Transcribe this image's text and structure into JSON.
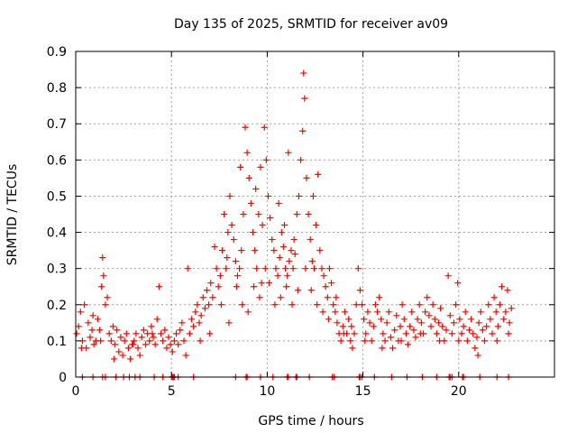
{
  "chart_data": {
    "type": "scatter",
    "title": "Day 135 of 2025, SRMTID for receiver av09",
    "xlabel": "GPS time / hours",
    "ylabel": "SRMTID / TECUs",
    "xlim": [
      0,
      25
    ],
    "ylim": [
      0,
      0.9
    ],
    "xticks": [
      0,
      5,
      10,
      15,
      20
    ],
    "yticks": [
      0,
      0.1,
      0.2,
      0.3,
      0.4,
      0.5,
      0.6,
      0.7,
      0.8,
      0.9
    ],
    "ytick_labels": [
      "0",
      "0.1",
      "0.2",
      "0.3",
      "0.4",
      "0.5",
      "0.6",
      "0.7",
      "0.8",
      "0.9"
    ],
    "grid": true,
    "marker": "+",
    "color": "#ff0000",
    "series": [
      {
        "name": "SRMTID",
        "points": [
          [
            0.05,
            0.12
          ],
          [
            0.15,
            0.14
          ],
          [
            0.25,
            0.18
          ],
          [
            0.35,
            0.1
          ],
          [
            0.45,
            0.2
          ],
          [
            0.55,
            0.08
          ],
          [
            0.65,
            0.15
          ],
          [
            0.75,
            0.11
          ],
          [
            0.85,
            0.13
          ],
          [
            0.95,
            0.09
          ],
          [
            1.05,
            0.1
          ],
          [
            1.15,
            0.16
          ],
          [
            1.25,
            0.13
          ],
          [
            1.35,
            0.25
          ],
          [
            1.4,
            0.33
          ],
          [
            1.45,
            0.28
          ],
          [
            1.55,
            0.2
          ],
          [
            1.65,
            0.22
          ],
          [
            1.75,
            0.12
          ],
          [
            1.85,
            0.1
          ],
          [
            1.95,
            0.14
          ],
          [
            2.05,
            0.09
          ],
          [
            2.15,
            0.13
          ],
          [
            2.25,
            0.07
          ],
          [
            2.35,
            0.11
          ],
          [
            2.45,
            0.06
          ],
          [
            2.55,
            0.1
          ],
          [
            2.65,
            0.12
          ],
          [
            2.75,
            0.08
          ],
          [
            2.85,
            0.05
          ],
          [
            2.95,
            0.09
          ],
          [
            3.05,
            0.1
          ],
          [
            3.15,
            0.12
          ],
          [
            3.25,
            0.08
          ],
          [
            3.35,
            0.06
          ],
          [
            3.45,
            0.11
          ],
          [
            3.55,
            0.13
          ],
          [
            3.65,
            0.09
          ],
          [
            3.75,
            0.12
          ],
          [
            3.85,
            0.1
          ],
          [
            3.95,
            0.14
          ],
          [
            4.05,
            0.11
          ],
          [
            4.15,
            0.09
          ],
          [
            4.25,
            0.16
          ],
          [
            4.35,
            0.25
          ],
          [
            4.45,
            0.12
          ],
          [
            4.55,
            0.1
          ],
          [
            4.65,
            0.13
          ],
          [
            4.75,
            0.08
          ],
          [
            4.85,
            0.11
          ],
          [
            4.95,
            0.09
          ],
          [
            5.05,
            0.07
          ],
          [
            5.15,
            0.1
          ],
          [
            5.25,
            0.12
          ],
          [
            5.35,
            0.09
          ],
          [
            5.45,
            0.13
          ],
          [
            5.55,
            0.15
          ],
          [
            5.65,
            0.1
          ],
          [
            5.75,
            0.06
          ],
          [
            5.85,
            0.3
          ],
          [
            5.95,
            0.12
          ],
          [
            6.05,
            0.16
          ],
          [
            6.15,
            0.14
          ],
          [
            6.25,
            0.18
          ],
          [
            6.35,
            0.2
          ],
          [
            6.45,
            0.15
          ],
          [
            6.55,
            0.17
          ],
          [
            6.65,
            0.22
          ],
          [
            6.75,
            0.19
          ],
          [
            6.85,
            0.24
          ],
          [
            6.95,
            0.2
          ],
          [
            7.05,
            0.26
          ],
          [
            7.15,
            0.22
          ],
          [
            7.25,
            0.36
          ],
          [
            7.35,
            0.3
          ],
          [
            7.45,
            0.25
          ],
          [
            7.55,
            0.28
          ],
          [
            7.65,
            0.35
          ],
          [
            7.75,
            0.45
          ],
          [
            7.85,
            0.3
          ],
          [
            7.95,
            0.4
          ],
          [
            8.05,
            0.5
          ],
          [
            8.15,
            0.42
          ],
          [
            8.25,
            0.38
          ],
          [
            8.35,
            0.32
          ],
          [
            8.45,
            0.28
          ],
          [
            8.55,
            0.3
          ],
          [
            8.65,
            0.35
          ],
          [
            8.75,
            0.45
          ],
          [
            8.85,
            0.69
          ],
          [
            8.95,
            0.62
          ],
          [
            9.05,
            0.55
          ],
          [
            9.15,
            0.48
          ],
          [
            9.25,
            0.4
          ],
          [
            9.35,
            0.35
          ],
          [
            9.45,
            0.3
          ],
          [
            9.55,
            0.45
          ],
          [
            9.65,
            0.58
          ],
          [
            9.75,
            0.42
          ],
          [
            9.85,
            0.69
          ],
          [
            9.95,
            0.6
          ],
          [
            10.05,
            0.5
          ],
          [
            10.15,
            0.44
          ],
          [
            10.25,
            0.38
          ],
          [
            10.35,
            0.35
          ],
          [
            10.45,
            0.3
          ],
          [
            10.55,
            0.28
          ],
          [
            10.65,
            0.33
          ],
          [
            10.75,
            0.4
          ],
          [
            10.85,
            0.36
          ],
          [
            10.95,
            0.3
          ],
          [
            11.05,
            0.28
          ],
          [
            11.15,
            0.32
          ],
          [
            11.25,
            0.35
          ],
          [
            11.35,
            0.3
          ],
          [
            11.45,
            0.34
          ],
          [
            11.55,
            0.45
          ],
          [
            11.65,
            0.5
          ],
          [
            11.75,
            0.6
          ],
          [
            11.85,
            0.68
          ],
          [
            11.9,
            0.84
          ],
          [
            11.95,
            0.77
          ],
          [
            12.05,
            0.55
          ],
          [
            12.15,
            0.45
          ],
          [
            12.25,
            0.38
          ],
          [
            12.35,
            0.32
          ],
          [
            12.45,
            0.3
          ],
          [
            12.55,
            0.42
          ],
          [
            12.65,
            0.56
          ],
          [
            12.75,
            0.35
          ],
          [
            12.85,
            0.3
          ],
          [
            12.95,
            0.28
          ],
          [
            13.05,
            0.25
          ],
          [
            13.15,
            0.22
          ],
          [
            13.25,
            0.3
          ],
          [
            13.35,
            0.26
          ],
          [
            13.45,
            0.2
          ],
          [
            13.55,
            0.18
          ],
          [
            13.65,
            0.15
          ],
          [
            13.75,
            0.12
          ],
          [
            13.85,
            0.1
          ],
          [
            13.95,
            0.14
          ],
          [
            14.05,
            0.18
          ],
          [
            14.15,
            0.12
          ],
          [
            14.25,
            0.16
          ],
          [
            14.35,
            0.1
          ],
          [
            14.45,
            0.08
          ],
          [
            14.55,
            0.12
          ],
          [
            14.65,
            0.2
          ],
          [
            14.75,
            0.3
          ],
          [
            14.85,
            0.24
          ],
          [
            14.95,
            0.2
          ],
          [
            15.05,
            0.16
          ],
          [
            15.15,
            0.12
          ],
          [
            15.25,
            0.18
          ],
          [
            15.35,
            0.15
          ],
          [
            15.45,
            0.1
          ],
          [
            15.55,
            0.14
          ],
          [
            15.65,
            0.2
          ],
          [
            15.75,
            0.18
          ],
          [
            15.85,
            0.22
          ],
          [
            15.95,
            0.16
          ],
          [
            16.05,
            0.12
          ],
          [
            16.15,
            0.1
          ],
          [
            16.25,
            0.15
          ],
          [
            16.35,
            0.18
          ],
          [
            16.45,
            0.11
          ],
          [
            16.55,
            0.08
          ],
          [
            16.65,
            0.13
          ],
          [
            16.75,
            0.17
          ],
          [
            16.85,
            0.1
          ],
          [
            16.95,
            0.14
          ],
          [
            17.05,
            0.2
          ],
          [
            17.15,
            0.16
          ],
          [
            17.25,
            0.12
          ],
          [
            17.35,
            0.09
          ],
          [
            17.45,
            0.14
          ],
          [
            17.55,
            0.18
          ],
          [
            17.65,
            0.13
          ],
          [
            17.75,
            0.11
          ],
          [
            17.85,
            0.16
          ],
          [
            17.95,
            0.2
          ],
          [
            18.05,
            0.15
          ],
          [
            18.15,
            0.12
          ],
          [
            18.25,
            0.18
          ],
          [
            18.35,
            0.22
          ],
          [
            18.45,
            0.17
          ],
          [
            18.55,
            0.14
          ],
          [
            18.65,
            0.2
          ],
          [
            18.75,
            0.16
          ],
          [
            18.85,
            0.12
          ],
          [
            18.95,
            0.15
          ],
          [
            19.05,
            0.19
          ],
          [
            19.15,
            0.14
          ],
          [
            19.25,
            0.1
          ],
          [
            19.35,
            0.13
          ],
          [
            19.45,
            0.28
          ],
          [
            19.55,
            0.17
          ],
          [
            19.65,
            0.12
          ],
          [
            19.75,
            0.15
          ],
          [
            19.85,
            0.2
          ],
          [
            19.95,
            0.26
          ],
          [
            20.05,
            0.16
          ],
          [
            20.15,
            0.12
          ],
          [
            20.25,
            0.14
          ],
          [
            20.35,
            0.18
          ],
          [
            20.45,
            0.1
          ],
          [
            20.55,
            0.13
          ],
          [
            20.65,
            0.16
          ],
          [
            20.75,
            0.12
          ],
          [
            20.85,
            0.08
          ],
          [
            20.95,
            0.11
          ],
          [
            21.05,
            0.15
          ],
          [
            21.15,
            0.18
          ],
          [
            21.25,
            0.13
          ],
          [
            21.35,
            0.1
          ],
          [
            21.45,
            0.14
          ],
          [
            21.55,
            0.2
          ],
          [
            21.65,
            0.16
          ],
          [
            21.75,
            0.12
          ],
          [
            21.85,
            0.22
          ],
          [
            21.95,
            0.18
          ],
          [
            22.05,
            0.14
          ],
          [
            22.15,
            0.2
          ],
          [
            22.25,
            0.25
          ],
          [
            22.35,
            0.16
          ],
          [
            22.45,
            0.18
          ],
          [
            22.55,
            0.24
          ],
          [
            22.65,
            0.15
          ],
          [
            22.75,
            0.19
          ],
          [
            1.3,
            0.1
          ],
          [
            2.0,
            0.05
          ],
          [
            3.0,
            0.09
          ],
          [
            4.0,
            0.12
          ],
          [
            6.5,
            0.1
          ],
          [
            7.0,
            0.12
          ],
          [
            7.6,
            0.2
          ],
          [
            8.0,
            0.15
          ],
          [
            8.4,
            0.25
          ],
          [
            8.7,
            0.2
          ],
          [
            9.0,
            0.18
          ],
          [
            9.3,
            0.25
          ],
          [
            9.6,
            0.22
          ],
          [
            9.9,
            0.3
          ],
          [
            10.1,
            0.26
          ],
          [
            10.4,
            0.2
          ],
          [
            10.7,
            0.22
          ],
          [
            11.0,
            0.25
          ],
          [
            11.3,
            0.2
          ],
          [
            11.6,
            0.24
          ],
          [
            12.0,
            0.3
          ],
          [
            12.3,
            0.24
          ],
          [
            12.6,
            0.2
          ],
          [
            12.9,
            0.18
          ],
          [
            13.2,
            0.16
          ],
          [
            13.6,
            0.22
          ],
          [
            14.0,
            0.12
          ],
          [
            14.4,
            0.14
          ],
          [
            15.1,
            0.1
          ],
          [
            16.0,
            0.08
          ],
          [
            17.0,
            0.1
          ],
          [
            18.0,
            0.12
          ],
          [
            19.0,
            0.1
          ],
          [
            20.0,
            0.1
          ],
          [
            21.0,
            0.06
          ],
          [
            22.0,
            0.1
          ],
          [
            22.6,
            0.12
          ],
          [
            0.3,
            0.08
          ],
          [
            0.9,
            0.17
          ],
          [
            11.1,
            0.62
          ],
          [
            10.6,
            0.48
          ],
          [
            9.4,
            0.52
          ],
          [
            8.6,
            0.58
          ],
          [
            12.4,
            0.5
          ],
          [
            7.9,
            0.33
          ],
          [
            9.7,
            0.26
          ],
          [
            10.9,
            0.42
          ],
          [
            11.4,
            0.38
          ]
        ]
      }
    ],
    "zero_points": [
      0.35,
      0.9,
      1.4,
      1.55,
      2.1,
      2.5,
      2.8,
      3.1,
      3.35,
      4.1,
      4.55,
      5.0,
      5.05,
      5.1,
      5.15,
      5.35,
      6.15,
      8.35,
      8.9,
      8.95,
      9.65,
      10.3,
      11.05,
      11.1,
      11.5,
      11.55,
      12.2,
      13.4,
      13.5,
      14.8,
      14.85,
      14.95,
      15.6,
      16.5,
      17.3,
      18.1,
      18.85,
      19.5,
      19.55,
      19.65,
      20.2,
      20.25,
      21.1,
      22.0,
      22.6
    ]
  }
}
